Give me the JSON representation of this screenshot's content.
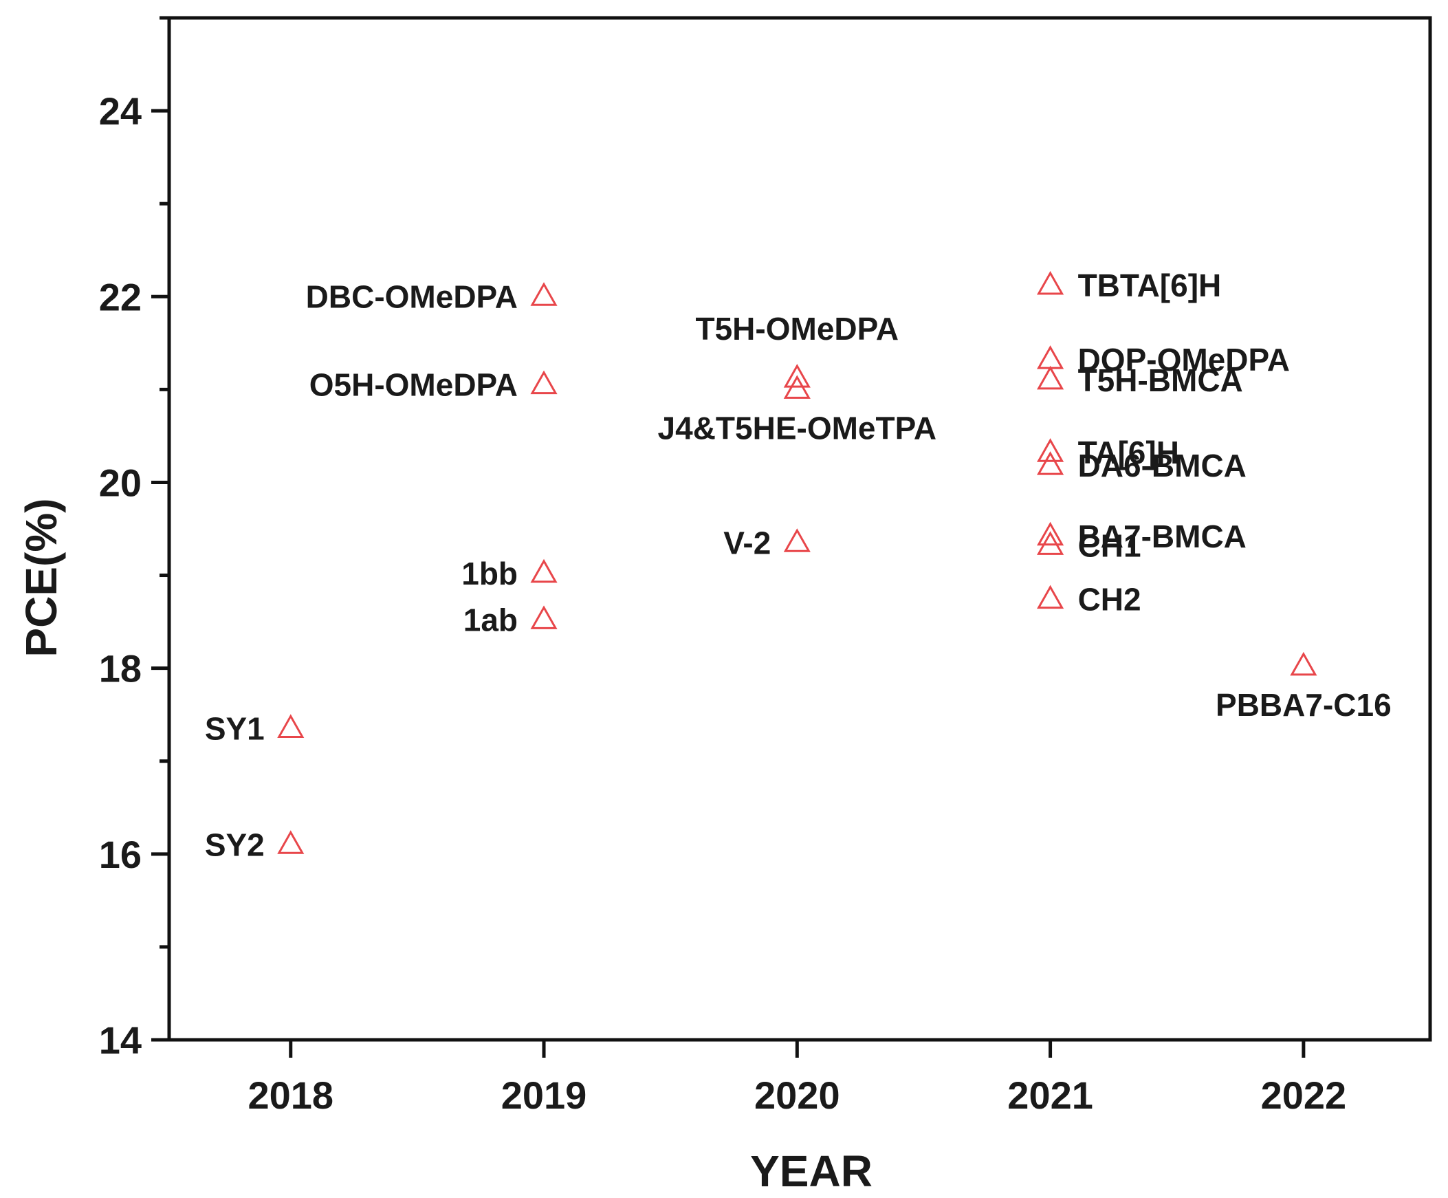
{
  "chart_data": {
    "type": "scatter",
    "title": "",
    "xlabel": "YEAR",
    "ylabel": "PCE(%)",
    "xlim": [
      2017.52,
      2022.5
    ],
    "ylim": [
      14,
      25
    ],
    "x_ticks": [
      2018,
      2019,
      2020,
      2021,
      2022
    ],
    "y_ticks": [
      14,
      16,
      18,
      20,
      22,
      24
    ],
    "marker": "open-triangle",
    "marker_color": "#e8464a",
    "points": [
      {
        "label": "SY1",
        "x": 2018,
        "y": 17.35,
        "anchor": "left"
      },
      {
        "label": "SY2",
        "x": 2018,
        "y": 16.1,
        "anchor": "left"
      },
      {
        "label": "DBC-OMeDPA",
        "x": 2019,
        "y": 22.0,
        "anchor": "left"
      },
      {
        "label": "O5H-OMeDPA",
        "x": 2019,
        "y": 21.05,
        "anchor": "left"
      },
      {
        "label": "1bb",
        "x": 2019,
        "y": 19.02,
        "anchor": "left"
      },
      {
        "label": "1ab",
        "x": 2019,
        "y": 18.52,
        "anchor": "left"
      },
      {
        "label": "T5H-OMeDPA",
        "x": 2020,
        "y": 21.12,
        "anchor": "above"
      },
      {
        "label": "J4&T5HE-OMeTPA",
        "x": 2020,
        "y": 21.0,
        "anchor": "below"
      },
      {
        "label": "V-2",
        "x": 2020,
        "y": 19.35,
        "anchor": "left"
      },
      {
        "label": "TBTA[6]H",
        "x": 2021,
        "y": 22.12,
        "anchor": "right"
      },
      {
        "label": "DOP-OMeDPA",
        "x": 2021,
        "y": 21.32,
        "anchor": "right"
      },
      {
        "label": "T5H-BMCA",
        "x": 2021,
        "y": 21.1,
        "anchor": "right"
      },
      {
        "label": "TA[6]H",
        "x": 2021,
        "y": 20.32,
        "anchor": "right"
      },
      {
        "label": "DA6-BMCA",
        "x": 2021,
        "y": 20.18,
        "anchor": "right"
      },
      {
        "label": "BA7-BMCA",
        "x": 2021,
        "y": 19.42,
        "anchor": "right"
      },
      {
        "label": "CH1",
        "x": 2021,
        "y": 19.32,
        "anchor": "right"
      },
      {
        "label": "CH2",
        "x": 2021,
        "y": 18.74,
        "anchor": "right"
      },
      {
        "label": "PBBA7-C16",
        "x": 2022,
        "y": 18.02,
        "anchor": "below"
      }
    ]
  }
}
